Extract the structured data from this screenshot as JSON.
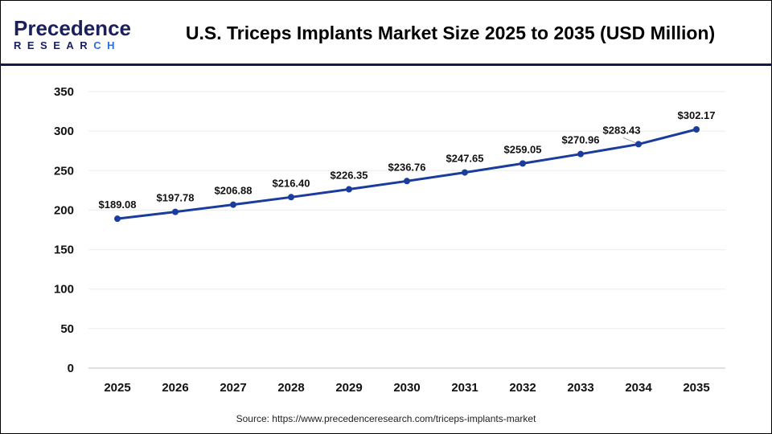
{
  "logo": {
    "line1_first": "P",
    "line1_rest": "recedence",
    "line2_a": "RESEAR",
    "line2_b": "CH"
  },
  "title": "U.S. Triceps Implants Market Size 2025 to 2035 (USD Million)",
  "source": "Source: https://www.precedenceresearch.com/triceps-implants-market",
  "chart_data": {
    "type": "line",
    "title": "U.S. Triceps Implants Market Size 2025 to 2035 (USD Million)",
    "categories": [
      "2025",
      "2026",
      "2027",
      "2028",
      "2029",
      "2030",
      "2031",
      "2032",
      "2033",
      "2034",
      "2035"
    ],
    "values": [
      189.08,
      197.78,
      206.88,
      216.4,
      226.35,
      236.76,
      247.65,
      259.05,
      270.96,
      283.43,
      302.17
    ],
    "data_labels": [
      "$189.08",
      "$197.78",
      "$206.88",
      "$216.40",
      "$226.35",
      "$236.76",
      "$247.65",
      "$259.05",
      "$270.96",
      "$283.43",
      "$302.17"
    ],
    "yticks": [
      0,
      50,
      100,
      150,
      200,
      250,
      300,
      350
    ],
    "ylim": [
      0,
      350
    ],
    "grid": true,
    "line_color": "#1a3d9c",
    "xlabel": "",
    "ylabel": ""
  }
}
